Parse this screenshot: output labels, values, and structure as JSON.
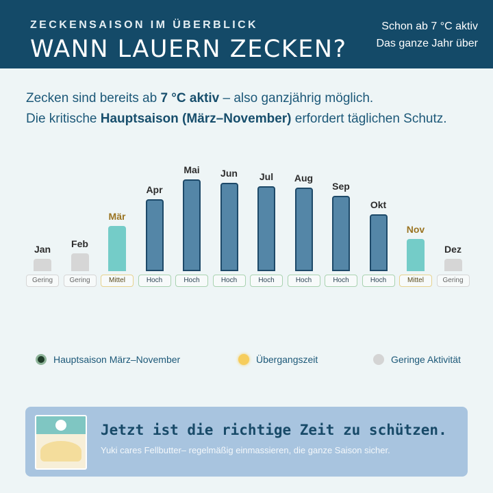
{
  "header": {
    "eyebrow": "ZECKENSAISON IM ÜBERBLICK",
    "headline": "WANN LAUERN ZECKEN?",
    "side_line1": "Schon ab 7 °C aktiv",
    "side_line2": "Das ganze Jahr über"
  },
  "intro": {
    "l1_a": "Zecken sind bereits ab ",
    "l1_b": "7 °C aktiv",
    "l1_c": " – also ganzjährig möglich.",
    "l2_a": "Die kritische ",
    "l2_b": "Hauptsaison (März–November)",
    "l2_c": " erfordert täglichen Schutz."
  },
  "chart_data": {
    "type": "bar",
    "categories": [
      "Jan",
      "Feb",
      "Mär",
      "Apr",
      "Mai",
      "Jun",
      "Jul",
      "Aug",
      "Sep",
      "Okt",
      "Nov",
      "Dez"
    ],
    "values": [
      18,
      26,
      66,
      105,
      134,
      129,
      124,
      122,
      110,
      83,
      47,
      18
    ],
    "levels": [
      "Gering",
      "Gering",
      "Mittel",
      "Hoch",
      "Hoch",
      "Hoch",
      "Hoch",
      "Hoch",
      "Hoch",
      "Hoch",
      "Mittel",
      "Gering"
    ],
    "ylim": [
      0,
      140
    ],
    "colors": {
      "high": "#5486a7",
      "mid": "#74ccc8",
      "low": "#d6d6d6"
    }
  },
  "legend": {
    "main": "Hauptsaison März–November",
    "transition": "Übergangszeit",
    "low": "Geringe Aktivität"
  },
  "cta": {
    "title": "Jetzt ist die richtige Zeit zu schützen.",
    "subtitle": "Yuki cares Fellbutter– regelmäßig einmassieren, die ganze Saison sicher.",
    "product_icon": "fellbutter-package-image"
  }
}
